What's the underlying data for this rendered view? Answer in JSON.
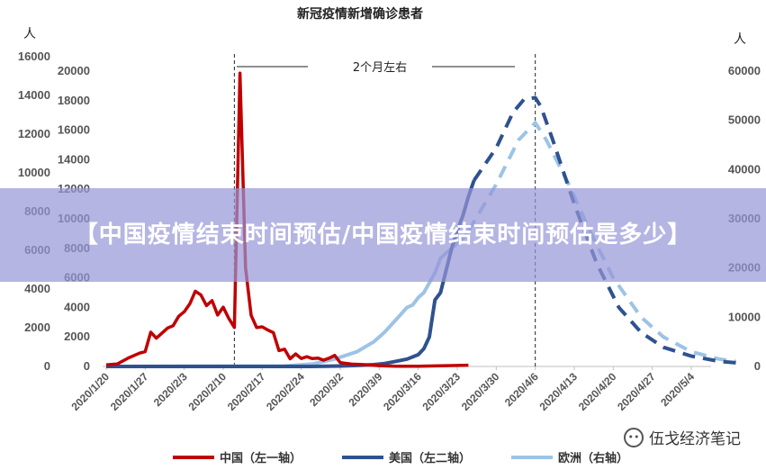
{
  "chart_data": {
    "type": "line",
    "title": "新冠疫情新增确诊患者",
    "y_unit_left": "人",
    "y_unit_right": "人",
    "axis_left1": {
      "ticks": [
        0,
        2000,
        4000,
        6000,
        8000,
        10000,
        12000,
        14000,
        16000
      ],
      "ylim": [
        0,
        16000
      ]
    },
    "axis_left2": {
      "ticks": [
        0,
        2000,
        4000,
        6000,
        8000,
        10000,
        12000,
        14000,
        16000,
        18000,
        20000
      ],
      "ylim": [
        0,
        20000
      ]
    },
    "axis_right": {
      "ticks": [
        0,
        10000,
        20000,
        30000,
        40000,
        50000,
        60000
      ],
      "ylim": [
        0,
        60000
      ]
    },
    "x_ticks": [
      "2020/1/20",
      "2020/1/27",
      "2020/2/3",
      "2020/2/10",
      "2020/2/17",
      "2020/2/24",
      "2020/3/2",
      "2020/3/9",
      "2020/3/16",
      "2020/3/23",
      "2020/3/30",
      "2020/4/6",
      "2020/4/13",
      "2020/4/20",
      "2020/4/27",
      "2020/5/4"
    ],
    "annotation": "2个月左右",
    "vlines": [
      "2020/2/12",
      "2020/4/6"
    ],
    "series": [
      {
        "name": "中国（左一轴）",
        "axis": "left1",
        "color": "#c00000",
        "dashed_from": null,
        "points": [
          [
            "2020/1/20",
            77
          ],
          [
            "2020/1/22",
            131
          ],
          [
            "2020/1/24",
            444
          ],
          [
            "2020/1/26",
            688
          ],
          [
            "2020/1/27",
            769
          ],
          [
            "2020/1/28",
            1771
          ],
          [
            "2020/1/29",
            1459
          ],
          [
            "2020/1/31",
            1982
          ],
          [
            "2020/2/1",
            2102
          ],
          [
            "2020/2/2",
            2590
          ],
          [
            "2020/2/3",
            2829
          ],
          [
            "2020/2/4",
            3235
          ],
          [
            "2020/2/5",
            3887
          ],
          [
            "2020/2/6",
            3694
          ],
          [
            "2020/2/7",
            3143
          ],
          [
            "2020/2/8",
            3399
          ],
          [
            "2020/2/9",
            2656
          ],
          [
            "2020/2/10",
            3062
          ],
          [
            "2020/2/11",
            2478
          ],
          [
            "2020/2/12",
            2015
          ],
          [
            "2020/2/13",
            15152
          ],
          [
            "2020/2/14",
            5090
          ],
          [
            "2020/2/15",
            2641
          ],
          [
            "2020/2/16",
            2009
          ],
          [
            "2020/2/17",
            2048
          ],
          [
            "2020/2/18",
            1886
          ],
          [
            "2020/2/19",
            1749
          ],
          [
            "2020/2/20",
            820
          ],
          [
            "2020/2/21",
            892
          ],
          [
            "2020/2/22",
            397
          ],
          [
            "2020/2/23",
            648
          ],
          [
            "2020/2/24",
            409
          ],
          [
            "2020/2/25",
            508
          ],
          [
            "2020/2/26",
            406
          ],
          [
            "2020/2/27",
            433
          ],
          [
            "2020/2/28",
            327
          ],
          [
            "2020/2/29",
            427
          ],
          [
            "2020/3/1",
            573
          ],
          [
            "2020/3/2",
            202
          ],
          [
            "2020/3/4",
            119
          ],
          [
            "2020/3/6",
            99
          ],
          [
            "2020/3/9",
            40
          ],
          [
            "2020/3/12",
            15
          ],
          [
            "2020/3/16",
            16
          ],
          [
            "2020/3/20",
            39
          ],
          [
            "2020/3/25",
            67
          ]
        ]
      },
      {
        "name": "美国（左二轴）",
        "axis": "left2",
        "color": "#2f528f",
        "dashed_from": "2020/3/26",
        "points": [
          [
            "2020/1/20",
            0
          ],
          [
            "2020/2/26",
            3
          ],
          [
            "2020/3/2",
            30
          ],
          [
            "2020/3/5",
            70
          ],
          [
            "2020/3/8",
            120
          ],
          [
            "2020/3/10",
            200
          ],
          [
            "2020/3/12",
            350
          ],
          [
            "2020/3/14",
            500
          ],
          [
            "2020/3/16",
            800
          ],
          [
            "2020/3/17",
            1200
          ],
          [
            "2020/3/18",
            2000
          ],
          [
            "2020/3/19",
            4500
          ],
          [
            "2020/3/20",
            5000
          ],
          [
            "2020/3/21",
            6500
          ],
          [
            "2020/3/22",
            8000
          ],
          [
            "2020/3/23",
            9200
          ],
          [
            "2020/3/24",
            10200
          ],
          [
            "2020/3/25",
            11500
          ],
          [
            "2020/3/26",
            12600
          ],
          [
            "2020/3/30",
            14800
          ],
          [
            "2020/4/2",
            17200
          ],
          [
            "2020/4/4",
            18100
          ],
          [
            "2020/4/6",
            18200
          ],
          [
            "2020/4/7",
            17600
          ],
          [
            "2020/4/9",
            15500
          ],
          [
            "2020/4/13",
            11000
          ],
          [
            "2020/4/17",
            7000
          ],
          [
            "2020/4/21",
            4000
          ],
          [
            "2020/4/25",
            2300
          ],
          [
            "2020/4/29",
            1300
          ],
          [
            "2020/5/4",
            700
          ],
          [
            "2020/5/9",
            350
          ],
          [
            "2020/5/12",
            250
          ]
        ]
      },
      {
        "name": "欧洲（右轴）",
        "axis": "right",
        "color": "#9dc3e6",
        "dashed_from": "2020/3/25",
        "points": [
          [
            "2020/1/20",
            0
          ],
          [
            "2020/2/21",
            100
          ],
          [
            "2020/2/26",
            500
          ],
          [
            "2020/3/1",
            1500
          ],
          [
            "2020/3/5",
            3000
          ],
          [
            "2020/3/8",
            5000
          ],
          [
            "2020/3/10",
            7000
          ],
          [
            "2020/3/12",
            9500
          ],
          [
            "2020/3/14",
            12000
          ],
          [
            "2020/3/15",
            12500
          ],
          [
            "2020/3/16",
            14000
          ],
          [
            "2020/3/17",
            15000
          ],
          [
            "2020/3/18",
            17000
          ],
          [
            "2020/3/19",
            19000
          ],
          [
            "2020/3/20",
            22000
          ],
          [
            "2020/3/22",
            24000
          ],
          [
            "2020/3/23",
            25000
          ],
          [
            "2020/3/24",
            26000
          ],
          [
            "2020/3/25",
            27500
          ],
          [
            "2020/3/30",
            37000
          ],
          [
            "2020/4/3",
            46000
          ],
          [
            "2020/4/6",
            49500
          ],
          [
            "2020/4/8",
            46000
          ],
          [
            "2020/4/12",
            37000
          ],
          [
            "2020/4/16",
            27000
          ],
          [
            "2020/4/20",
            18000
          ],
          [
            "2020/4/25",
            10000
          ],
          [
            "2020/4/29",
            6000
          ],
          [
            "2020/5/4",
            3000
          ],
          [
            "2020/5/9",
            1500
          ],
          [
            "2020/5/12",
            1000
          ]
        ]
      }
    ],
    "legend_position": "bottom"
  },
  "overlay_banner": "【中国疫情结束时间预估/中国疫情结束时间预估是多少】",
  "watermark": {
    "text": "伍戈经济笔记",
    "icon": "wechat-icon"
  }
}
